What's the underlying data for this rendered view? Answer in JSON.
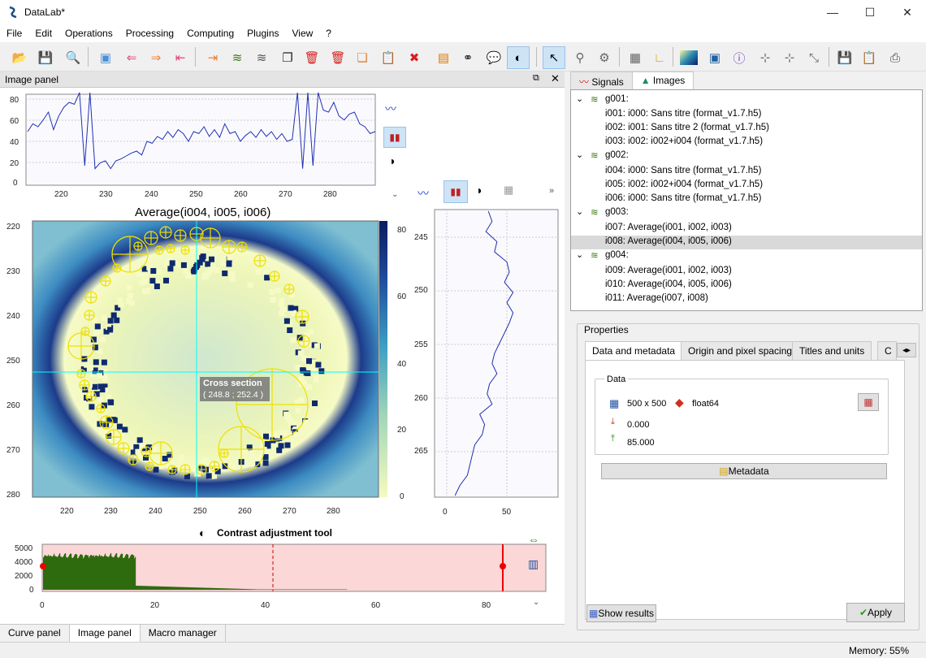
{
  "window": {
    "title": "DataLab*",
    "min": "—",
    "max": "☐",
    "close": "✕"
  },
  "menu": [
    "File",
    "Edit",
    "Operations",
    "Processing",
    "Computing",
    "Plugins",
    "View",
    "?"
  ],
  "panel": {
    "title": "Image panel"
  },
  "plot": {
    "title": "Average(i004, i005, i006)",
    "x_ticks": [
      "220",
      "230",
      "240",
      "250",
      "260",
      "270",
      "280"
    ],
    "y_ticks": [
      "220",
      "230",
      "240",
      "250",
      "260",
      "270",
      "280"
    ],
    "colorbar_ticks": [
      "80",
      "60",
      "40",
      "20",
      "0"
    ],
    "top_profile_y_ticks": [
      "80",
      "60",
      "40",
      "20",
      "0"
    ],
    "right_profile_y_ticks": [
      "245",
      "250",
      "255",
      "260",
      "265"
    ],
    "right_profile_x_ticks": [
      "0",
      "50"
    ],
    "cursor_label": "Cross section",
    "cursor_coords": "( 248.8 ; 252.4 )"
  },
  "contrast": {
    "title": "Contrast adjustment tool",
    "y_ticks": [
      "5000",
      "4000",
      "2000",
      "0"
    ],
    "x_ticks": [
      "0",
      "20",
      "40",
      "60",
      "80"
    ]
  },
  "bottom_tabs": [
    "Curve panel",
    "Image panel",
    "Macro manager"
  ],
  "right_tabs": [
    "Signals",
    "Images"
  ],
  "tree": [
    {
      "type": "group",
      "label": "g001:"
    },
    {
      "type": "item",
      "label": "i001: i000: Sans titre (format_v1.7.h5)"
    },
    {
      "type": "item",
      "label": "i002: i001: Sans titre 2 (format_v1.7.h5)"
    },
    {
      "type": "item",
      "label": "i003: i002: i002+i004 (format_v1.7.h5)"
    },
    {
      "type": "group",
      "label": "g002:"
    },
    {
      "type": "item",
      "label": "i004: i000: Sans titre (format_v1.7.h5)"
    },
    {
      "type": "item",
      "label": "i005: i002: i002+i004 (format_v1.7.h5)"
    },
    {
      "type": "item",
      "label": "i006: i000: Sans titre (format_v1.7.h5)"
    },
    {
      "type": "group",
      "label": "g003:"
    },
    {
      "type": "item",
      "label": "i007: Average(i001, i002, i003)"
    },
    {
      "type": "item",
      "label": "i008: Average(i004, i005, i006)",
      "selected": true
    },
    {
      "type": "group",
      "label": "g004:"
    },
    {
      "type": "item",
      "label": "i009: Average(i001, i002, i003)"
    },
    {
      "type": "item",
      "label": "i010: Average(i004, i005, i006)"
    },
    {
      "type": "item",
      "label": "i011: Average(i007, i008)"
    }
  ],
  "properties": {
    "title": "Properties",
    "tabs": [
      "Data and metadata",
      "Origin and pixel spacing",
      "Titles and units",
      "C"
    ],
    "data_group": "Data",
    "size": "500 x 500",
    "dtype": "float64",
    "min": "0.000",
    "max": "85.000",
    "metadata_button": "Metadata",
    "show_results": "Show results",
    "apply": "Apply"
  },
  "status": {
    "memory": "Memory: 55%"
  },
  "colors": {
    "selected_row": "#d9d9d9",
    "histogram_fill": "#2e6b0e",
    "histogram_bg": "#fbd7d7",
    "curve": "#1f2fb3",
    "cursor": "#00ffff"
  }
}
